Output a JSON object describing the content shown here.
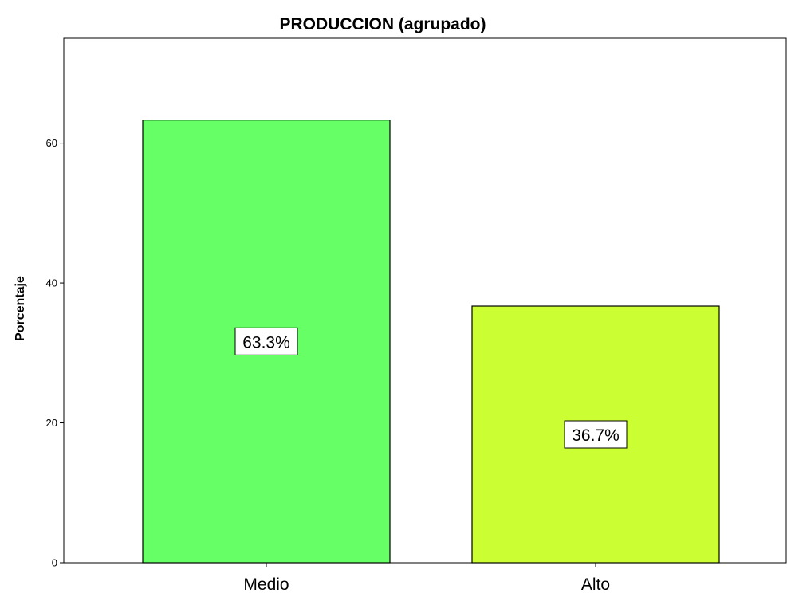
{
  "chart_data": {
    "type": "bar",
    "title": "PRODUCCION (agrupado)",
    "xlabel": "",
    "ylabel": "Porcentaje",
    "categories": [
      "Medio",
      "Alto"
    ],
    "values": [
      63.3,
      36.7
    ],
    "data_labels": [
      "63.3%",
      "36.7%"
    ],
    "bar_colors": [
      "#66ff66",
      "#ccff33"
    ],
    "ylim": [
      0,
      75
    ],
    "yticks": [
      0,
      20,
      40,
      60
    ],
    "ytick_labels": [
      "0",
      "20",
      "40",
      "60"
    ],
    "grid": false,
    "legend": "none"
  }
}
